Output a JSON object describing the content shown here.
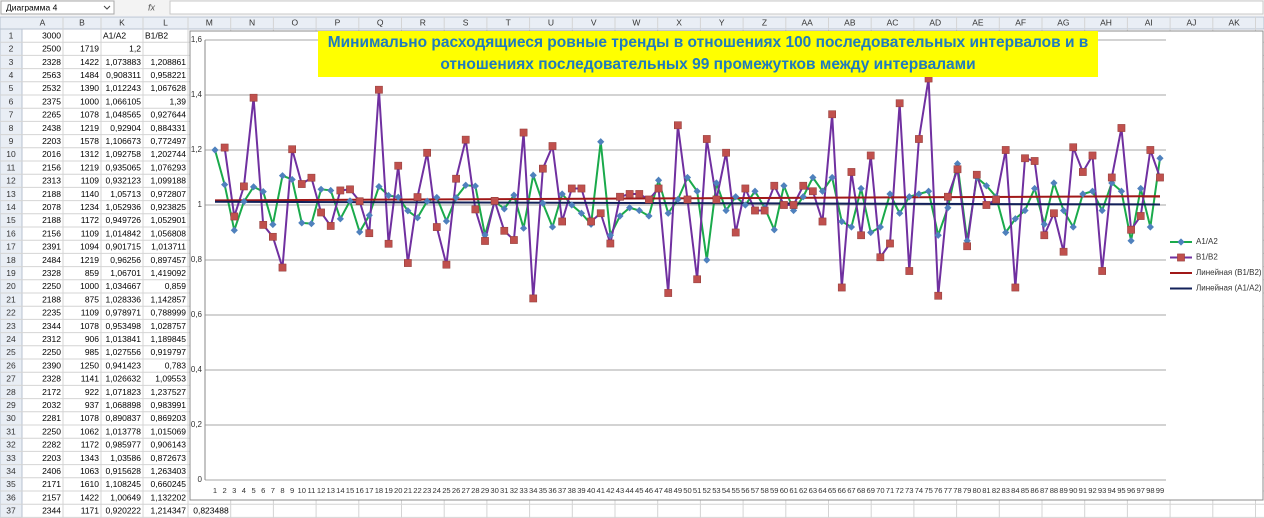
{
  "sheet": {
    "name_box": "Диаграмма 4",
    "fx": "fx",
    "columns": [
      "A",
      "B",
      "K",
      "L",
      "M",
      "N",
      "O",
      "P",
      "Q",
      "R",
      "S",
      "T",
      "U",
      "V",
      "W",
      "X",
      "Y",
      "Z",
      "AA",
      "AB",
      "AC",
      "AD",
      "AE",
      "AF",
      "AG",
      "AH",
      "AI",
      "AJ",
      "AK"
    ],
    "rows": [
      [
        "1",
        "3000",
        null,
        "A1/A2",
        "B1/B2"
      ],
      [
        "2",
        "2500",
        "1719",
        "1,2",
        null
      ],
      [
        "3",
        "2328",
        "1422",
        "1,073883",
        "1,208861"
      ],
      [
        "4",
        "2563",
        "1484",
        "0,908311",
        "0,958221"
      ],
      [
        "5",
        "2532",
        "1390",
        "1,012243",
        "1,067628"
      ],
      [
        "6",
        "2375",
        "1000",
        "1,066105",
        "1,39"
      ],
      [
        "7",
        "2265",
        "1078",
        "1,048565",
        "0,927644"
      ],
      [
        "8",
        "2438",
        "1219",
        "0,92904",
        "0,884331"
      ],
      [
        "9",
        "2203",
        "1578",
        "1,106673",
        "0,772497"
      ],
      [
        "10",
        "2016",
        "1312",
        "1,092758",
        "1,202744"
      ],
      [
        "11",
        "2156",
        "1219",
        "0,935065",
        "1,076293"
      ],
      [
        "12",
        "2313",
        "1109",
        "0,932123",
        "1,099188"
      ],
      [
        "13",
        "2188",
        "1140",
        "1,05713",
        "0,972807"
      ],
      [
        "14",
        "2078",
        "1234",
        "1,052936",
        "0,923825"
      ],
      [
        "15",
        "2188",
        "1172",
        "0,949726",
        "1,052901"
      ],
      [
        "16",
        "2156",
        "1109",
        "1,014842",
        "1,056808"
      ],
      [
        "17",
        "2391",
        "1094",
        "0,901715",
        "1,013711"
      ],
      [
        "18",
        "2484",
        "1219",
        "0,96256",
        "0,897457"
      ],
      [
        "19",
        "2328",
        "859",
        "1,06701",
        "1,419092"
      ],
      [
        "20",
        "2250",
        "1000",
        "1,034667",
        "0,859"
      ],
      [
        "21",
        "2188",
        "875",
        "1,028336",
        "1,142857"
      ],
      [
        "22",
        "2235",
        "1109",
        "0,978971",
        "0,788999"
      ],
      [
        "23",
        "2344",
        "1078",
        "0,953498",
        "1,028757"
      ],
      [
        "24",
        "2312",
        "906",
        "1,013841",
        "1,189845"
      ],
      [
        "25",
        "2250",
        "985",
        "1,027556",
        "0,919797"
      ],
      [
        "26",
        "2390",
        "1250",
        "0,941423",
        "0,783"
      ],
      [
        "27",
        "2328",
        "1141",
        "1,026632",
        "1,09553"
      ],
      [
        "28",
        "2172",
        "922",
        "1,071823",
        "1,237527"
      ],
      [
        "29",
        "2032",
        "937",
        "1,068898",
        "0,983991"
      ],
      [
        "30",
        "2281",
        "1078",
        "0,890837",
        "0,869203"
      ],
      [
        "31",
        "2250",
        "1062",
        "1,013778",
        "1,015069"
      ],
      [
        "32",
        "2282",
        "1172",
        "0,985977",
        "0,906143"
      ],
      [
        "33",
        "2203",
        "1343",
        "1,03586",
        "0,872673"
      ],
      [
        "34",
        "2406",
        "1063",
        "0,915628",
        "1,263403"
      ],
      [
        "35",
        "2171",
        "1610",
        "1,108245",
        "0,660245"
      ],
      [
        "36",
        "2157",
        "1422",
        "1,00649",
        "1,132202"
      ],
      [
        "37",
        "2344",
        "1171",
        "0,920222",
        "1,214347",
        "0,823488"
      ]
    ]
  },
  "chart_data": {
    "type": "line",
    "title": [
      "Минимально расходящиеся ровные тренды в отношениях 100 последовательных интервалов и в",
      "отношениях последовательных 99 промежутков между интервалами"
    ],
    "title_background": "#ffff00",
    "title_color": "#1f7bbf",
    "categories": [
      1,
      2,
      3,
      4,
      5,
      6,
      7,
      8,
      9,
      10,
      11,
      12,
      13,
      14,
      15,
      16,
      17,
      18,
      19,
      20,
      21,
      22,
      23,
      24,
      25,
      26,
      27,
      28,
      29,
      30,
      31,
      32,
      33,
      34,
      35,
      36,
      37,
      38,
      39,
      40,
      41,
      42,
      43,
      44,
      45,
      46,
      47,
      48,
      49,
      50,
      51,
      52,
      53,
      54,
      55,
      56,
      57,
      58,
      59,
      60,
      61,
      62,
      63,
      64,
      65,
      66,
      67,
      68,
      69,
      70,
      71,
      72,
      73,
      74,
      75,
      76,
      77,
      78,
      79,
      80,
      81,
      82,
      83,
      84,
      85,
      86,
      87,
      88,
      89,
      90,
      91,
      92,
      93,
      94,
      95,
      96,
      97,
      98,
      99
    ],
    "ylim": [
      0,
      1.6
    ],
    "yticks": [
      0,
      {
        "value": 0.2,
        "label": "0,2"
      },
      {
        "value": 0.4,
        "label": "0,4"
      },
      {
        "value": 0.6,
        "label": "0,6"
      },
      {
        "value": 0.8,
        "label": "0,8"
      },
      1,
      {
        "value": 1.2,
        "label": "1,2"
      },
      {
        "value": 1.4,
        "label": "1,4"
      },
      {
        "value": 1.6,
        "label": "1,6"
      }
    ],
    "grid": true,
    "legend": "right",
    "series": [
      {
        "name": "A1/A2",
        "color": "#1aaa4b",
        "marker_color": "#4f81bd",
        "marker": "diamond",
        "values": [
          1.2,
          1.073883,
          0.908311,
          1.012243,
          1.066105,
          1.048565,
          0.92904,
          1.106673,
          1.092758,
          0.935065,
          0.932123,
          1.05713,
          1.052936,
          0.949726,
          1.014842,
          0.901715,
          0.96256,
          1.06701,
          1.034667,
          1.028336,
          0.978971,
          0.953498,
          1.013841,
          1.027556,
          0.941423,
          1.026632,
          1.071823,
          1.068898,
          0.890837,
          1.013778,
          0.985977,
          1.03586,
          0.915628,
          1.108245,
          1.00649,
          0.920222,
          1.04,
          1.0,
          0.97,
          0.93,
          1.23,
          0.89,
          0.96,
          0.99,
          0.98,
          0.96,
          1.09,
          0.97,
          1.02,
          1.1,
          1.05,
          0.8,
          1.08,
          0.98,
          1.03,
          1.0,
          1.05,
          0.99,
          0.91,
          1.07,
          0.98,
          1.03,
          1.1,
          1.05,
          1.1,
          0.94,
          0.92,
          1.06,
          0.9,
          0.92,
          1.04,
          0.97,
          1.03,
          1.04,
          1.05,
          0.89,
          0.99,
          1.15,
          0.87,
          1.1,
          1.07,
          1.03,
          0.9,
          0.95,
          0.98,
          1.06,
          0.93,
          1.08,
          0.98,
          0.92,
          1.04,
          1.05,
          0.98,
          1.08,
          1.05,
          0.87,
          1.06,
          0.92,
          1.17
        ]
      },
      {
        "name": "B1/B2",
        "color": "#7030a0",
        "marker_color": "#c0504d",
        "marker": "square",
        "values": [
          null,
          1.208861,
          0.958221,
          1.067628,
          1.39,
          0.927644,
          0.884331,
          0.772497,
          1.202744,
          1.076293,
          1.099188,
          0.972807,
          0.923825,
          1.052901,
          1.056808,
          1.013711,
          0.897457,
          1.419092,
          0.859,
          1.142857,
          0.788999,
          1.028757,
          1.189845,
          0.919797,
          0.783,
          1.09553,
          1.237527,
          0.983991,
          0.869203,
          1.015069,
          0.906143,
          0.872673,
          1.263403,
          0.660245,
          1.132202,
          1.214347,
          0.94,
          1.06,
          1.06,
          0.94,
          0.97,
          0.86,
          1.03,
          1.04,
          1.04,
          1.02,
          1.06,
          0.68,
          1.29,
          1.02,
          0.73,
          1.24,
          1.02,
          1.19,
          0.9,
          1.06,
          0.98,
          0.98,
          1.07,
          1.0,
          1.0,
          1.07,
          1.05,
          0.94,
          1.33,
          0.7,
          1.12,
          0.89,
          1.18,
          0.81,
          0.86,
          1.37,
          0.76,
          1.24,
          1.46,
          0.67,
          1.03,
          1.13,
          0.85,
          1.11,
          1.0,
          1.02,
          1.2,
          0.7,
          1.17,
          1.16,
          0.89,
          0.97,
          0.83,
          1.21,
          1.12,
          1.18,
          0.76,
          1.1,
          1.28,
          0.91,
          0.96,
          1.2,
          1.1
        ]
      }
    ],
    "trendlines": [
      {
        "name": "Линейная (B1/B2)",
        "color": "#a01818",
        "of": "B1/B2"
      },
      {
        "name": "Линейная (A1/A2)",
        "color": "#13215a",
        "of": "A1/A2"
      }
    ]
  }
}
